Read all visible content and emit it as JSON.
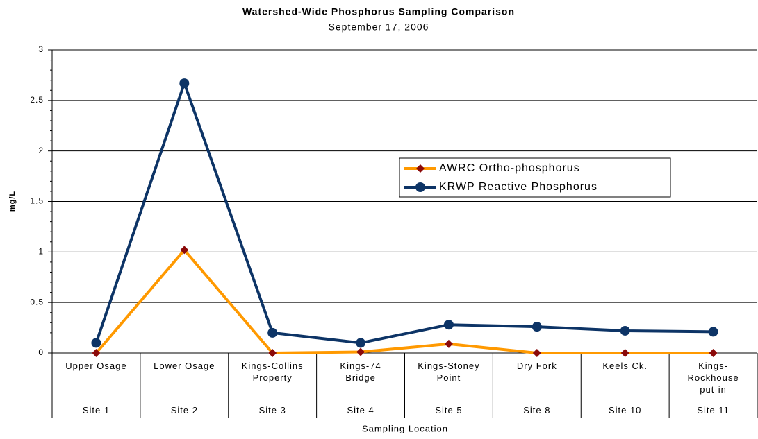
{
  "chart_data": {
    "type": "line",
    "title": "Watershed-Wide Phosphorus Sampling Comparison",
    "subtitle": "September 17, 2006",
    "x_label": "Sampling Location",
    "y_label": "mg/L",
    "categories": [
      "Upper Osage",
      "Lower Osage",
      "Kings-Collins Property",
      "Kings-74 Bridge",
      "Kings-Stoney Point",
      "Dry Fork",
      "Keels Ck.",
      "Kings-Rockhouse put-in"
    ],
    "sites": [
      "Site 1",
      "Site 2",
      "Site 3",
      "Site 4",
      "Site 5",
      "Site 8",
      "Site 10",
      "Site 11"
    ],
    "series": [
      {
        "name": "AWRC Ortho-phosphorus",
        "color": "#ff9900",
        "marker": "diamond",
        "marker_color": "#8b0a0a",
        "values": [
          0,
          1.02,
          0,
          0.01,
          0.09,
          0,
          0,
          0
        ]
      },
      {
        "name": "KRWP Reactive Phosphorus",
        "color": "#0d3466",
        "marker": "circle",
        "marker_color": "#0d3466",
        "values": [
          0.1,
          2.67,
          0.2,
          0.1,
          0.28,
          0.26,
          0.22,
          0.21
        ]
      }
    ],
    "ylim": [
      0,
      3
    ],
    "yticks": [
      0,
      0.5,
      1,
      1.5,
      2,
      2.5,
      3
    ],
    "grid": true,
    "legend": "center-right"
  }
}
